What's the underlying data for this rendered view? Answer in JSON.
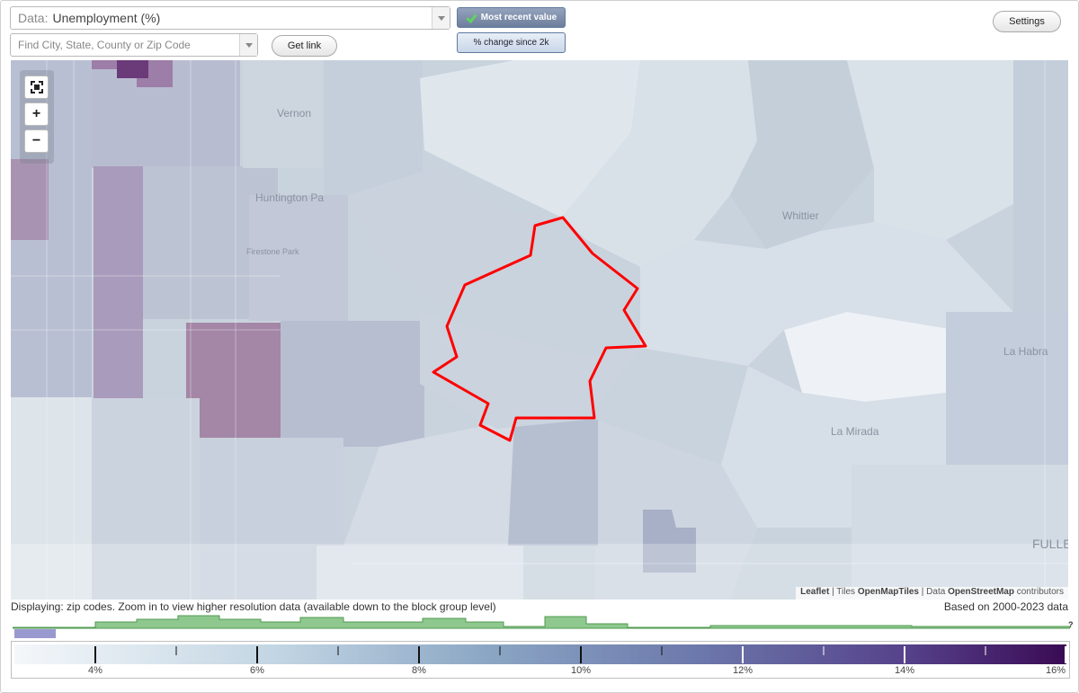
{
  "controls": {
    "data_prefix": "Data:",
    "data_value": "Unemployment (%)",
    "search_placeholder": "Find City, State, County or Zip Code",
    "get_link": "Get link",
    "mode_recent": "Most recent value",
    "mode_change": "% change since 2k",
    "settings": "Settings"
  },
  "map": {
    "places": [
      "Vernon",
      "Huntington Pa",
      "Firestone Park",
      "Whittier",
      "La Habra",
      "La Mirada",
      "FULLE"
    ],
    "zoom_in": "+",
    "zoom_out": "−",
    "icons": [
      "fullscreen-icon",
      "zoom-in-icon",
      "zoom-out-icon"
    ],
    "highlight_color": "#ff0000",
    "attribution": {
      "leaflet": "Leaflet",
      "tiles_prefix": "| Tiles",
      "tiles": "OpenMapTiles",
      "data_prefix": "| Data",
      "data": "OpenStreetMap",
      "suffix": "contributors"
    }
  },
  "status": {
    "displaying": "Displaying: zip codes. Zoom in to view higher resolution data (available down to the block group level)",
    "data_range": "Based on 2000-2023 data",
    "histogram_help": "?"
  },
  "legend": {
    "labels": [
      "4%",
      "6%",
      "8%",
      "10%",
      "12%",
      "14%",
      "16%"
    ],
    "min": 3,
    "max": 16,
    "colors": [
      "#f4f7fa",
      "#c2d5e3",
      "#8ba6c4",
      "#6c78ab",
      "#55418a",
      "#3a0a54"
    ]
  }
}
